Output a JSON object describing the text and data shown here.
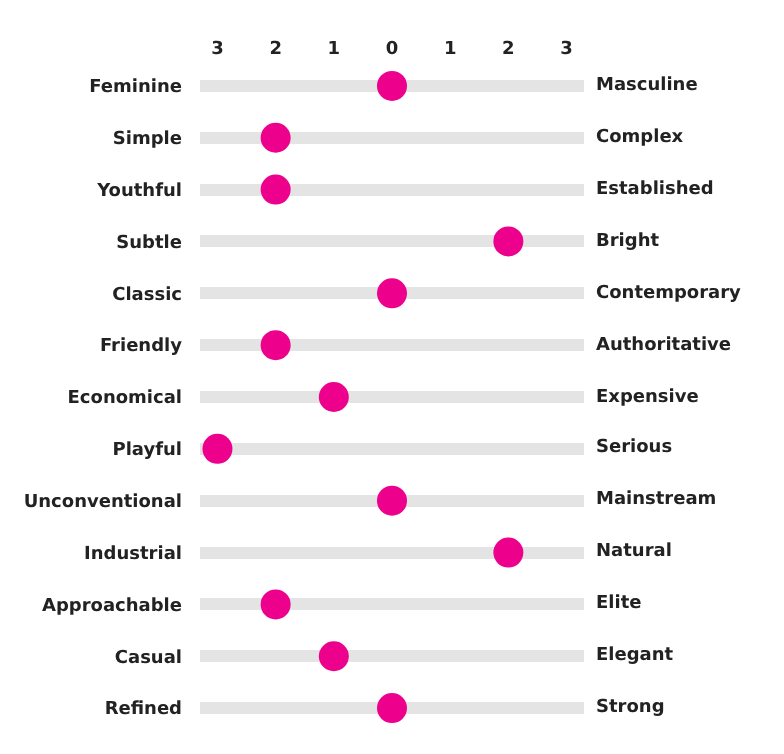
{
  "chart_data": {
    "type": "scatter",
    "categories": [
      "Feminine",
      "Simple",
      "Youthful",
      "Subtle",
      "Classic",
      "Friendly",
      "Economical",
      "Playful",
      "Unconventional",
      "Industrial",
      "Approachable",
      "Casual",
      "Refined"
    ],
    "y2_categories": [
      "Masculine",
      "Complex",
      "Established",
      "Bright",
      "Contemporary",
      "Authoritative",
      "Expensive",
      "Serious",
      "Mainstream",
      "Natural",
      "Elite",
      "Elegant",
      "Strong"
    ],
    "orientation": "horizontal",
    "values": [
      0,
      -2,
      -2,
      2,
      0,
      -2,
      -1,
      -3,
      0,
      2,
      -2,
      -1,
      0
    ],
    "color": "#ec008c",
    "marker": "circle",
    "xlim": [
      -3.3,
      3.3
    ],
    "xticks": [
      {
        "value": -3,
        "label": "3"
      },
      {
        "value": -2,
        "label": "2"
      },
      {
        "value": -1,
        "label": "1"
      },
      0,
      1,
      2,
      3
    ],
    "grid": "y"
  }
}
